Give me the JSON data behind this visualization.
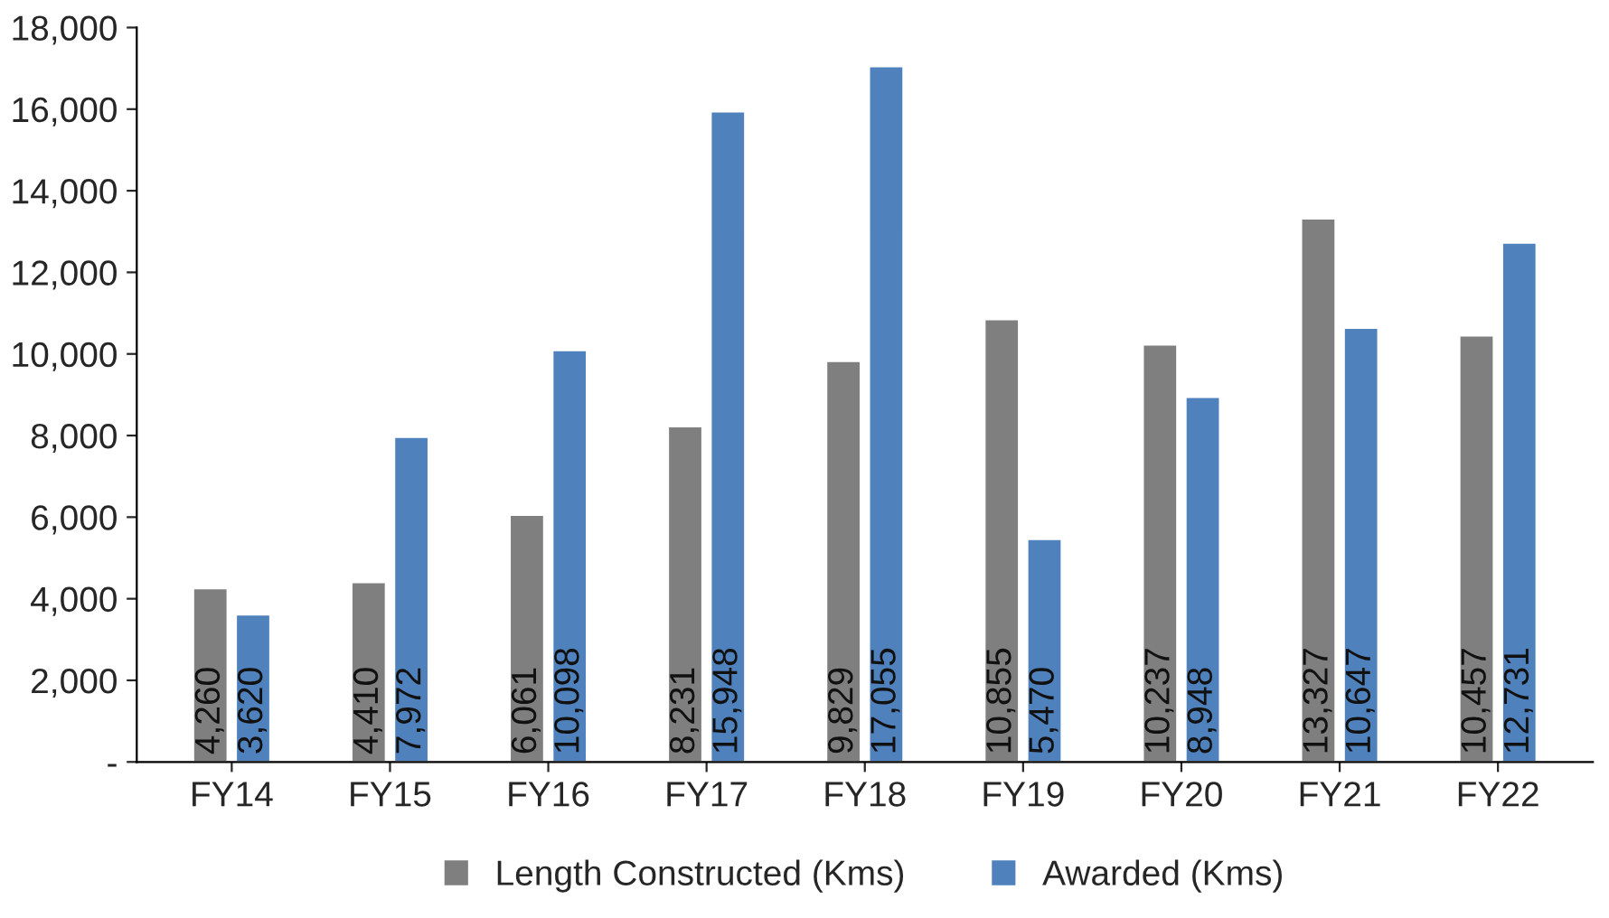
{
  "chart_data": {
    "type": "bar",
    "categories": [
      "FY14",
      "FY15",
      "FY16",
      "FY17",
      "FY18",
      "FY19",
      "FY20",
      "FY21",
      "FY22"
    ],
    "series": [
      {
        "name": "Length Constructed (Kms)",
        "color": "#7f7f7f",
        "values": [
          4260,
          4410,
          6061,
          8231,
          9829,
          10855,
          10237,
          13327,
          10457
        ],
        "value_labels": [
          "4,260",
          "4,410",
          "6,061",
          "8,231",
          "9,829",
          "10,855",
          "10,237",
          "13,327",
          "10,457"
        ]
      },
      {
        "name": "Awarded (Kms)",
        "color": "#4f81bd",
        "values": [
          3620,
          7972,
          10098,
          15948,
          17055,
          5470,
          8948,
          10647,
          12731
        ],
        "value_labels": [
          "3,620",
          "7,972",
          "10,098",
          "15,948",
          "17,055",
          "5,470",
          "8,948",
          "10,647",
          "12,731"
        ]
      }
    ],
    "ylim": [
      0,
      18000
    ],
    "yticks": [
      {
        "value": 0,
        "label": "-"
      },
      {
        "value": 2000,
        "label": "2,000"
      },
      {
        "value": 4000,
        "label": "4,000"
      },
      {
        "value": 6000,
        "label": "6,000"
      },
      {
        "value": 8000,
        "label": "8,000"
      },
      {
        "value": 10000,
        "label": "10,000"
      },
      {
        "value": 12000,
        "label": "12,000"
      },
      {
        "value": 14000,
        "label": "14,000"
      },
      {
        "value": 16000,
        "label": "16,000"
      },
      {
        "value": 18000,
        "label": "18,000"
      }
    ],
    "grid": false,
    "legend": "bottom"
  }
}
